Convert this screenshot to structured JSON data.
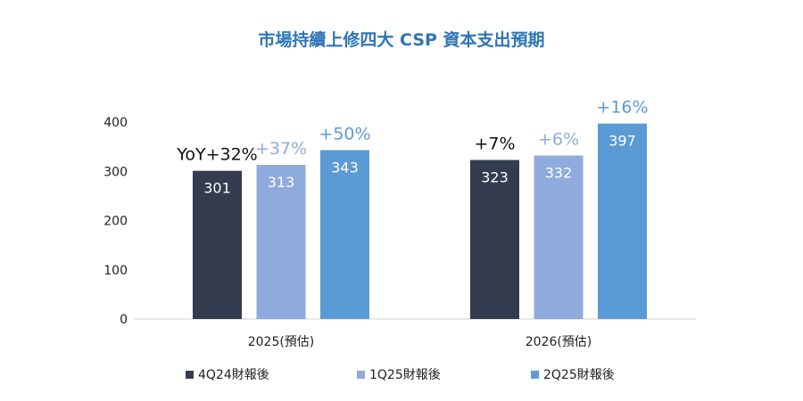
{
  "chart_data": {
    "type": "bar",
    "title": "市場持續上修四大 CSP 資本支出預期",
    "categories": [
      "2025(預估)",
      "2026(預估)"
    ],
    "series": [
      {
        "name": "4Q24財報後",
        "color": "#333d4f",
        "values": [
          301,
          323
        ],
        "annotations": [
          "YoY+32%",
          "+7%"
        ],
        "annotation_color": "#111111"
      },
      {
        "name": "1Q25財報後",
        "color": "#8faadc",
        "values": [
          313,
          332
        ],
        "annotations": [
          "+37%",
          "+6%"
        ],
        "annotation_color": "#8faadc"
      },
      {
        "name": "2Q25財報後",
        "color": "#5b9bd5",
        "values": [
          343,
          397
        ],
        "annotations": [
          "+50%",
          "+16%"
        ],
        "annotation_color": "#5b9bd5"
      }
    ],
    "yticks": [
      0,
      100,
      200,
      300,
      400
    ],
    "ylim": [
      0,
      400
    ],
    "xlabel": "",
    "ylabel": "",
    "grid": false,
    "legend_position": "bottom"
  }
}
